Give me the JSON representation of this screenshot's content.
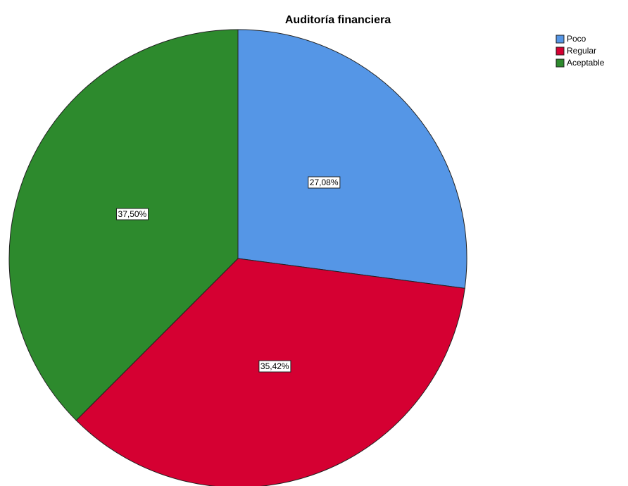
{
  "chart_data": {
    "type": "pie",
    "title": "Auditoría financiera",
    "categories": [
      "Poco",
      "Regular",
      "Aceptable"
    ],
    "values": [
      27.08,
      35.42,
      37.5
    ],
    "value_labels": [
      "27,08%",
      "35,42%",
      "37,50%"
    ],
    "colors": [
      "#5596e6",
      "#d50032",
      "#2d8a2d"
    ],
    "legend": "upper right"
  }
}
